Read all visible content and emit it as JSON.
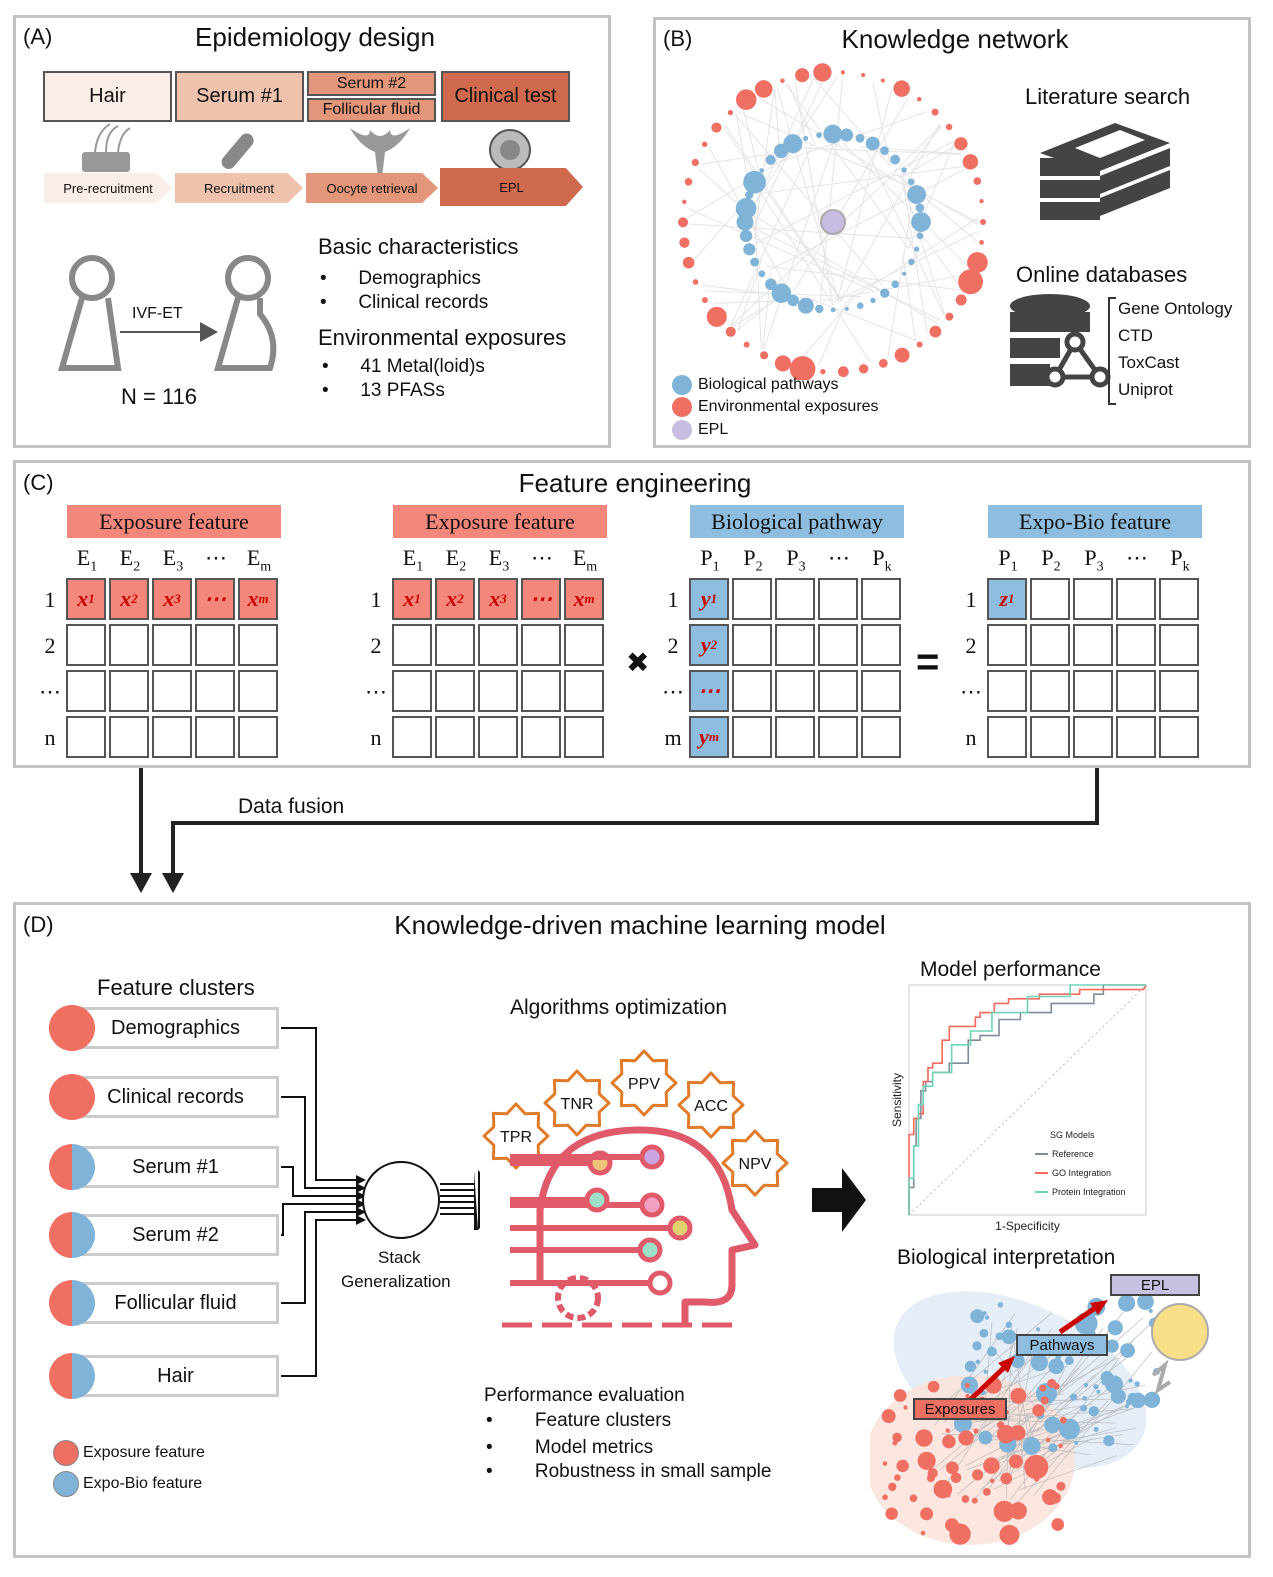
{
  "panel_a": {
    "label": "(A)",
    "title": "Epidemiology design",
    "samples": [
      {
        "label": "Hair",
        "color": "#fbeee8"
      },
      {
        "label": "Serum #1",
        "color": "#efc2ad"
      },
      {
        "label": "Serum #2",
        "color": "#e4967a"
      },
      {
        "label": "Follicular fluid",
        "color": "#e4967a"
      },
      {
        "label": "Clinical test",
        "color": "#d06a4f"
      }
    ],
    "timeline": [
      {
        "label": "Pre-recruitment",
        "color": "#fbeee8"
      },
      {
        "label": "Recruitment",
        "color": "#efc2ad"
      },
      {
        "label": "Oocyte retrieval",
        "color": "#e4967a"
      },
      {
        "label": "EPL",
        "color": "#d06a4f"
      }
    ],
    "icons": [
      "hair-follicle-icon",
      "test-tube-icon",
      "uterus-icon",
      "embryo-icon"
    ],
    "procedure": "IVF-ET",
    "sample_size": "N = 116",
    "basic_heading": "Basic characteristics",
    "basic_items": [
      "Demographics",
      "Clinical records"
    ],
    "env_heading": "Environmental exposures",
    "env_items": [
      "41 Metal(loid)s",
      "13 PFASs"
    ]
  },
  "panel_b": {
    "label": "(B)",
    "title": "Knowledge network",
    "literature": "Literature search",
    "databases_heading": "Online databases",
    "databases": [
      "Gene Ontology",
      "CTD",
      "ToxCast",
      "Uniprot"
    ],
    "legend": [
      {
        "label": "Biological pathways",
        "color": "#7fb3d8"
      },
      {
        "label": "Environmental exposures",
        "color": "#ef6f63"
      },
      {
        "label": "EPL",
        "color": "#c8bde0"
      }
    ]
  },
  "panel_c": {
    "label": "(C)",
    "title": "Feature engineering",
    "operators": [
      "✖",
      "="
    ],
    "matrices": [
      {
        "title": "Exposure feature",
        "color": "#f4877c",
        "cols": [
          [
            "E",
            "1"
          ],
          [
            "E",
            "2"
          ],
          [
            "E",
            "3"
          ],
          [
            "⋯",
            ""
          ],
          [
            "E",
            "m"
          ]
        ],
        "rows": [
          "1",
          "2",
          "⋯",
          "n"
        ],
        "filled": [
          {
            "r": 0,
            "c": 0,
            "t": "x",
            "s": "1"
          },
          {
            "r": 0,
            "c": 1,
            "t": "x",
            "s": "2"
          },
          {
            "r": 0,
            "c": 2,
            "t": "x",
            "s": "3"
          },
          {
            "r": 0,
            "c": 3,
            "t": "⋯",
            "s": ""
          },
          {
            "r": 0,
            "c": 4,
            "t": "x",
            "s": "m"
          }
        ],
        "fill": "#f4877c"
      },
      {
        "title": "Exposure feature",
        "color": "#f4877c",
        "cols": [
          [
            "E",
            "1"
          ],
          [
            "E",
            "2"
          ],
          [
            "E",
            "3"
          ],
          [
            "⋯",
            ""
          ],
          [
            "E",
            "m"
          ]
        ],
        "rows": [
          "1",
          "2",
          "⋯",
          "n"
        ],
        "filled": [
          {
            "r": 0,
            "c": 0,
            "t": "x",
            "s": "1"
          },
          {
            "r": 0,
            "c": 1,
            "t": "x",
            "s": "2"
          },
          {
            "r": 0,
            "c": 2,
            "t": "x",
            "s": "3"
          },
          {
            "r": 0,
            "c": 3,
            "t": "⋯",
            "s": ""
          },
          {
            "r": 0,
            "c": 4,
            "t": "x",
            "s": "m"
          }
        ],
        "fill": "#f4877c"
      },
      {
        "title": "Biological pathway",
        "color": "#8fbde0",
        "cols": [
          [
            "P",
            "1"
          ],
          [
            "P",
            "2"
          ],
          [
            "P",
            "3"
          ],
          [
            "⋯",
            ""
          ],
          [
            "P",
            "k"
          ]
        ],
        "rows": [
          "1",
          "2",
          "⋯",
          "m"
        ],
        "filled": [
          {
            "r": 0,
            "c": 0,
            "t": "y",
            "s": "1"
          },
          {
            "r": 1,
            "c": 0,
            "t": "y",
            "s": "2"
          },
          {
            "r": 2,
            "c": 0,
            "t": "⋯",
            "s": ""
          },
          {
            "r": 3,
            "c": 0,
            "t": "y",
            "s": "m"
          }
        ],
        "fill": "#8fbde0"
      },
      {
        "title": "Expo-Bio feature",
        "color": "#8fbde0",
        "cols": [
          [
            "P",
            "1"
          ],
          [
            "P",
            "2"
          ],
          [
            "P",
            "3"
          ],
          [
            "⋯",
            ""
          ],
          [
            "P",
            "k"
          ]
        ],
        "rows": [
          "1",
          "2",
          "⋯",
          "n"
        ],
        "filled": [
          {
            "r": 0,
            "c": 0,
            "t": "z",
            "s": "1"
          }
        ],
        "fill": "#8fbde0"
      }
    ]
  },
  "data_fusion": "Data fusion",
  "panel_d": {
    "label": "(D)",
    "title": "Knowledge-driven machine learning model",
    "clusters_heading": "Feature clusters",
    "clusters": [
      {
        "label": "Demographics",
        "type": "exposure"
      },
      {
        "label": "Clinical records",
        "type": "exposure"
      },
      {
        "label": "Serum #1",
        "type": "both"
      },
      {
        "label": "Serum #2",
        "type": "both"
      },
      {
        "label": "Follicular fluid",
        "type": "both"
      },
      {
        "label": "Hair",
        "type": "both"
      }
    ],
    "cluster_legend": [
      {
        "label": "Exposure feature",
        "color": "#ef6f63"
      },
      {
        "label": "Expo-Bio feature",
        "color": "#7fb3d8"
      }
    ],
    "stack_label_1": "Stack",
    "stack_label_2": "Generalization",
    "algo_heading": "Algorithms optimization",
    "gears": [
      "TPR",
      "TNR",
      "PPV",
      "ACC",
      "NPV"
    ],
    "gear_color": "#e07b2a",
    "head_color": "#e05a6a",
    "eval_heading": "Performance evaluation",
    "eval_items": [
      "Feature clusters",
      "Model metrics",
      "Robustness in small sample"
    ],
    "perf_heading": "Model performance",
    "bio_heading": "Biological interpretation",
    "bio_labels": {
      "epl": "EPL",
      "pathways": "Pathways",
      "exposures": "Exposures"
    }
  },
  "chart_data": {
    "type": "line",
    "title": "Model performance",
    "xlabel": "1-Specificity",
    "ylabel": "Sensitivity",
    "xlim": [
      0,
      1
    ],
    "ylim": [
      0,
      1
    ],
    "legend_title": "SG Models",
    "legend_position": "bottom-right",
    "diagonal_reference": true,
    "series": [
      {
        "name": "Reference",
        "color": "#7f8c99",
        "points": [
          [
            0,
            0
          ],
          [
            0,
            0.12
          ],
          [
            0.02,
            0.12
          ],
          [
            0.02,
            0.3
          ],
          [
            0.03,
            0.3
          ],
          [
            0.03,
            0.42
          ],
          [
            0.05,
            0.42
          ],
          [
            0.05,
            0.54
          ],
          [
            0.07,
            0.54
          ],
          [
            0.07,
            0.58
          ],
          [
            0.1,
            0.58
          ],
          [
            0.1,
            0.62
          ],
          [
            0.17,
            0.62
          ],
          [
            0.17,
            0.66
          ],
          [
            0.25,
            0.66
          ],
          [
            0.25,
            0.76
          ],
          [
            0.3,
            0.76
          ],
          [
            0.3,
            0.78
          ],
          [
            0.38,
            0.78
          ],
          [
            0.38,
            0.85
          ],
          [
            0.47,
            0.85
          ],
          [
            0.47,
            0.88
          ],
          [
            0.6,
            0.88
          ],
          [
            0.6,
            0.92
          ],
          [
            0.78,
            0.92
          ],
          [
            0.78,
            0.96
          ],
          [
            0.82,
            0.96
          ],
          [
            0.82,
            1
          ],
          [
            1,
            1
          ]
        ]
      },
      {
        "name": "GO Integration",
        "color": "#f26b5b",
        "points": [
          [
            0,
            0
          ],
          [
            0,
            0.17
          ],
          [
            0,
            0.35
          ],
          [
            0.02,
            0.35
          ],
          [
            0.02,
            0.42
          ],
          [
            0.04,
            0.42
          ],
          [
            0.04,
            0.44
          ],
          [
            0.06,
            0.44
          ],
          [
            0.06,
            0.58
          ],
          [
            0.08,
            0.58
          ],
          [
            0.08,
            0.64
          ],
          [
            0.1,
            0.64
          ],
          [
            0.1,
            0.66
          ],
          [
            0.14,
            0.66
          ],
          [
            0.14,
            0.76
          ],
          [
            0.17,
            0.76
          ],
          [
            0.17,
            0.82
          ],
          [
            0.28,
            0.82
          ],
          [
            0.28,
            0.86
          ],
          [
            0.3,
            0.86
          ],
          [
            0.3,
            0.88
          ],
          [
            0.36,
            0.88
          ],
          [
            0.36,
            0.92
          ],
          [
            0.42,
            0.92
          ],
          [
            0.42,
            0.94
          ],
          [
            0.55,
            0.94
          ],
          [
            0.55,
            0.96
          ],
          [
            0.72,
            0.96
          ],
          [
            0.72,
            0.98
          ],
          [
            0.99,
            0.98
          ],
          [
            1,
            1
          ]
        ]
      },
      {
        "name": "Protein Integration",
        "color": "#6fd3b8",
        "points": [
          [
            0,
            0
          ],
          [
            0,
            0.16
          ],
          [
            0.02,
            0.16
          ],
          [
            0.02,
            0.3
          ],
          [
            0.04,
            0.3
          ],
          [
            0.04,
            0.48
          ],
          [
            0.06,
            0.48
          ],
          [
            0.06,
            0.56
          ],
          [
            0.1,
            0.56
          ],
          [
            0.1,
            0.62
          ],
          [
            0.18,
            0.62
          ],
          [
            0.18,
            0.74
          ],
          [
            0.26,
            0.74
          ],
          [
            0.26,
            0.8
          ],
          [
            0.35,
            0.8
          ],
          [
            0.35,
            0.88
          ],
          [
            0.5,
            0.88
          ],
          [
            0.5,
            0.95
          ],
          [
            0.68,
            0.95
          ],
          [
            0.68,
            1
          ],
          [
            1,
            1
          ]
        ]
      }
    ]
  }
}
